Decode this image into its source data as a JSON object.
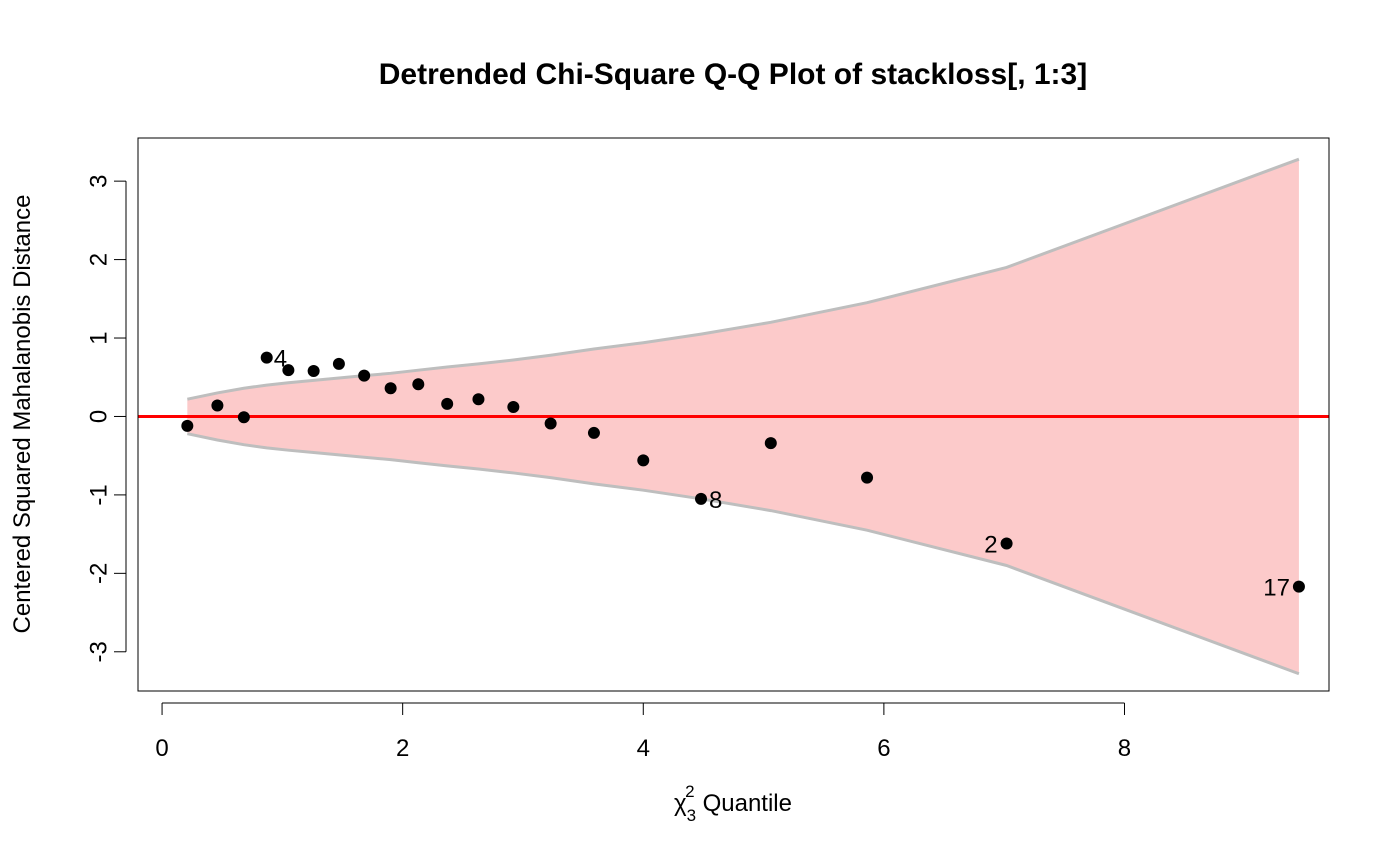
{
  "chart_data": {
    "type": "scatter",
    "title": "Detrended Chi-Square Q-Q Plot of stackloss[, 1:3]",
    "xlabel": {
      "symbol": "χ",
      "subscript": "3",
      "superscript": "2",
      "text": "Quantile"
    },
    "ylabel": "Centered Squared Mahalanobis Distance",
    "xlim": [
      -0.2,
      9.7
    ],
    "ylim": [
      -3.5,
      3.55
    ],
    "xticks": [
      0,
      2,
      4,
      6,
      8
    ],
    "xtick_labels": [
      "0",
      "2",
      "4",
      "6",
      "8"
    ],
    "yticks": [
      -3,
      -2,
      -1,
      0,
      1,
      2,
      3
    ],
    "ytick_labels": [
      "-3",
      "-2",
      "-1",
      "0",
      "1",
      "2",
      "3"
    ],
    "grid": false,
    "reference_line": {
      "y": 0,
      "color": "#ff0000"
    },
    "envelope": {
      "fill_color": "#fccaca",
      "line_color": "#bebebe",
      "x": [
        0.21,
        0.46,
        0.68,
        0.87,
        1.05,
        1.26,
        1.47,
        1.68,
        1.9,
        2.13,
        2.37,
        2.63,
        2.92,
        3.23,
        3.59,
        4.0,
        4.48,
        5.06,
        5.86,
        7.02,
        9.45
      ],
      "upper": [
        0.22,
        0.3,
        0.36,
        0.4,
        0.43,
        0.46,
        0.49,
        0.52,
        0.55,
        0.59,
        0.63,
        0.67,
        0.72,
        0.78,
        0.86,
        0.94,
        1.05,
        1.2,
        1.45,
        1.9,
        3.28
      ],
      "lower": [
        -0.22,
        -0.3,
        -0.36,
        -0.4,
        -0.43,
        -0.46,
        -0.49,
        -0.52,
        -0.55,
        -0.59,
        -0.63,
        -0.67,
        -0.72,
        -0.78,
        -0.86,
        -0.94,
        -1.05,
        -1.2,
        -1.45,
        -1.9,
        -3.28
      ]
    },
    "series": [
      {
        "points": [
          {
            "x": 0.21,
            "y": -0.12
          },
          {
            "x": 0.46,
            "y": 0.14
          },
          {
            "x": 0.68,
            "y": -0.01
          },
          {
            "x": 0.87,
            "y": 0.75,
            "label": "4"
          },
          {
            "x": 1.05,
            "y": 0.59
          },
          {
            "x": 1.26,
            "y": 0.58
          },
          {
            "x": 1.47,
            "y": 0.67
          },
          {
            "x": 1.68,
            "y": 0.52
          },
          {
            "x": 1.9,
            "y": 0.36
          },
          {
            "x": 2.13,
            "y": 0.41
          },
          {
            "x": 2.37,
            "y": 0.16
          },
          {
            "x": 2.63,
            "y": 0.22
          },
          {
            "x": 2.92,
            "y": 0.12
          },
          {
            "x": 3.23,
            "y": -0.09
          },
          {
            "x": 3.59,
            "y": -0.21
          },
          {
            "x": 4.0,
            "y": -0.56
          },
          {
            "x": 4.48,
            "y": -1.05,
            "label": "8"
          },
          {
            "x": 5.06,
            "y": -0.34
          },
          {
            "x": 5.86,
            "y": -0.78
          },
          {
            "x": 7.02,
            "y": -1.62,
            "label": "2"
          },
          {
            "x": 9.45,
            "y": -2.17,
            "label": "17"
          }
        ]
      }
    ]
  }
}
